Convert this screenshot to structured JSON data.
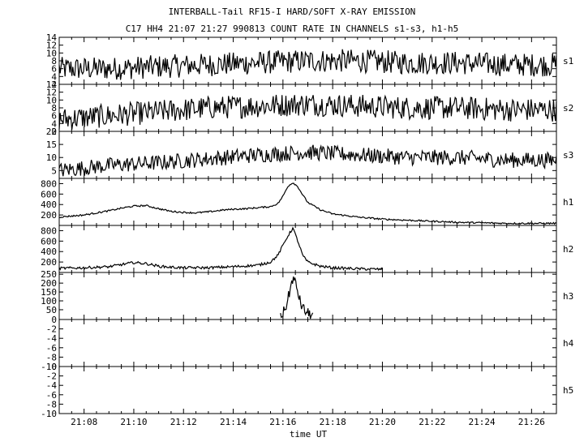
{
  "chart_data": {
    "type": "line",
    "title": "INTERBALL-Tail RF15-I HARD/SOFT X-RAY EMISSION",
    "subtitle": "C17 HH4 21:07 21:27 990813  COUNT RATE IN CHANNELS s1-s3, h1-h5",
    "xlabel": "time UT",
    "x_ticks": [
      "21:08",
      "21:10",
      "21:12",
      "21:14",
      "21:16",
      "21:18",
      "21:20",
      "21:22",
      "21:24",
      "21:26"
    ],
    "x_range_minutes": [
      7.0,
      27.0
    ],
    "panels": [
      {
        "name": "s1",
        "ylim": [
          2,
          14
        ],
        "yticks": [
          "2",
          "4",
          "6",
          "8",
          "10",
          "12",
          "14"
        ],
        "x": [
          7.0,
          9.0,
          11.0,
          13.0,
          15.0,
          17.0,
          19.0,
          21.0,
          23.0,
          25.0,
          27.0
        ],
        "values": [
          6,
          6,
          6.5,
          7,
          7.5,
          8,
          8,
          7.5,
          7.5,
          7,
          7
        ],
        "noise": 3
      },
      {
        "name": "s2",
        "ylim": [
          2,
          14
        ],
        "yticks": [
          "2",
          "4",
          "6",
          "8",
          "10",
          "12",
          "14"
        ],
        "x": [
          7.0,
          9.0,
          11.0,
          13.0,
          15.0,
          17.0,
          19.0,
          21.0,
          23.0,
          25.0,
          27.0
        ],
        "values": [
          5,
          6,
          7,
          8,
          8.5,
          9,
          8.5,
          8,
          8,
          7.5,
          7.5
        ],
        "noise": 3
      },
      {
        "name": "s3",
        "ylim": [
          2,
          20
        ],
        "yticks": [
          "5",
          "10",
          "15",
          "20"
        ],
        "x": [
          7.0,
          9.0,
          11.0,
          13.0,
          15.0,
          17.0,
          19.0,
          21.0,
          23.0,
          25.0,
          27.0
        ],
        "values": [
          5,
          7,
          8,
          9.5,
          11,
          12,
          11,
          10,
          10,
          9,
          9
        ],
        "noise": 3
      },
      {
        "name": "h1",
        "ylim": [
          0,
          900
        ],
        "yticks": [
          "200",
          "400",
          "600",
          "800"
        ],
        "x": [
          7.0,
          8.0,
          8.5,
          9.0,
          9.5,
          10.0,
          10.5,
          11.0,
          11.5,
          12.0,
          12.5,
          13.0,
          13.5,
          14.0,
          14.5,
          15.0,
          15.5,
          15.8,
          16.0,
          16.2,
          16.4,
          16.6,
          16.8,
          17.0,
          17.5,
          18.0,
          19.0,
          20.0,
          21.0,
          22.0,
          23.0,
          24.0,
          25.0,
          26.0,
          27.0
        ],
        "values": [
          160,
          200,
          240,
          280,
          330,
          370,
          380,
          320,
          270,
          250,
          240,
          260,
          290,
          310,
          320,
          340,
          360,
          420,
          560,
          750,
          820,
          740,
          580,
          440,
          300,
          220,
          160,
          120,
          100,
          80,
          60,
          50,
          40,
          40,
          40
        ],
        "noise": 15
      },
      {
        "name": "h2",
        "ylim": [
          0,
          900
        ],
        "yticks": [
          "200",
          "400",
          "600",
          "800"
        ],
        "x": [
          7.0,
          8.0,
          9.0,
          9.5,
          10.0,
          10.5,
          11.0,
          11.5,
          12.0,
          13.0,
          14.0,
          15.0,
          15.5,
          15.8,
          16.0,
          16.2,
          16.4,
          16.6,
          16.8,
          17.0,
          17.5,
          18.0,
          19.0,
          20.0
        ],
        "values": [
          80,
          90,
          110,
          150,
          190,
          170,
          120,
          100,
          90,
          90,
          110,
          140,
          200,
          330,
          520,
          700,
          850,
          600,
          320,
          200,
          120,
          90,
          70,
          60
        ],
        "noise": 25
      },
      {
        "name": "h3",
        "ylim": [
          -5,
          260
        ],
        "yticks": [
          "50",
          "100",
          "150",
          "200",
          "250"
        ],
        "x": [
          15.9,
          16.0,
          16.1,
          16.2,
          16.3,
          16.4,
          16.5,
          16.6,
          16.7,
          16.8,
          16.9,
          17.0,
          17.1,
          17.2
        ],
        "values": [
          10,
          30,
          60,
          110,
          170,
          230,
          200,
          150,
          90,
          60,
          40,
          30,
          25,
          15
        ],
        "noise": 30
      },
      {
        "name": "h4",
        "ylim": [
          -10,
          0
        ],
        "yticks": [
          "0",
          "-2",
          "-4",
          "-6",
          "-8",
          "-10"
        ],
        "x": [],
        "values": [],
        "noise": 0
      },
      {
        "name": "h5",
        "ylim": [
          -10,
          0
        ],
        "yticks": [
          "0",
          "-2",
          "-4",
          "-6",
          "-8",
          "-10"
        ],
        "x": [],
        "values": [],
        "noise": 0
      }
    ]
  }
}
